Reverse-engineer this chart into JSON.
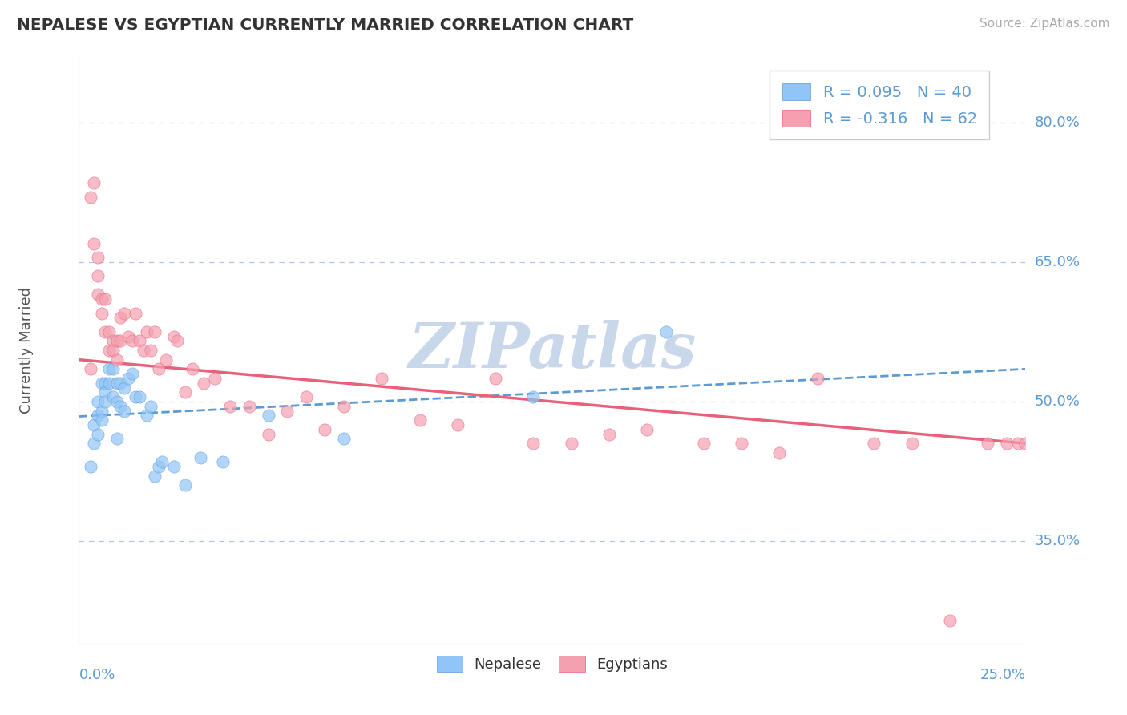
{
  "title": "NEPALESE VS EGYPTIAN CURRENTLY MARRIED CORRELATION CHART",
  "source_text": "Source: ZipAtlas.com",
  "ylabel": "Currently Married",
  "xlim": [
    0.0,
    0.25
  ],
  "ylim": [
    0.24,
    0.87
  ],
  "yticks": [
    0.35,
    0.5,
    0.65,
    0.8
  ],
  "ytick_labels": [
    "35.0%",
    "50.0%",
    "65.0%",
    "80.0%"
  ],
  "nepalese_R": 0.095,
  "nepalese_N": 40,
  "egyptian_R": -0.316,
  "egyptian_N": 62,
  "nepalese_color": "#92c5f7",
  "egyptian_color": "#f4a0b0",
  "nepalese_line_color": "#5b9bd5",
  "egyptian_line_color": "#e8607a",
  "legend_color": "#5b9bd5",
  "background_color": "#ffffff",
  "grid_color": "#aec6e0",
  "watermark_color": "#c8d8ea",
  "title_color": "#333333",
  "source_color": "#aaaaaa",
  "ylabel_color": "#555555",
  "axis_label_color": "#5b9bd5",
  "nepalese_x": [
    0.003,
    0.004,
    0.004,
    0.005,
    0.005,
    0.005,
    0.006,
    0.006,
    0.006,
    0.007,
    0.007,
    0.007,
    0.008,
    0.008,
    0.009,
    0.009,
    0.01,
    0.01,
    0.01,
    0.011,
    0.011,
    0.012,
    0.012,
    0.013,
    0.014,
    0.015,
    0.016,
    0.018,
    0.019,
    0.02,
    0.021,
    0.022,
    0.025,
    0.028,
    0.032,
    0.038,
    0.05,
    0.07,
    0.12,
    0.155
  ],
  "nepalese_y": [
    0.43,
    0.475,
    0.455,
    0.5,
    0.485,
    0.465,
    0.52,
    0.49,
    0.48,
    0.52,
    0.51,
    0.5,
    0.535,
    0.52,
    0.535,
    0.505,
    0.52,
    0.5,
    0.46,
    0.52,
    0.495,
    0.515,
    0.49,
    0.525,
    0.53,
    0.505,
    0.505,
    0.485,
    0.495,
    0.42,
    0.43,
    0.435,
    0.43,
    0.41,
    0.44,
    0.435,
    0.485,
    0.46,
    0.505,
    0.575
  ],
  "egyptian_x": [
    0.003,
    0.003,
    0.004,
    0.004,
    0.005,
    0.005,
    0.005,
    0.006,
    0.006,
    0.007,
    0.007,
    0.008,
    0.008,
    0.009,
    0.009,
    0.01,
    0.01,
    0.011,
    0.011,
    0.012,
    0.013,
    0.014,
    0.015,
    0.016,
    0.017,
    0.018,
    0.019,
    0.02,
    0.021,
    0.023,
    0.025,
    0.026,
    0.028,
    0.03,
    0.033,
    0.036,
    0.04,
    0.045,
    0.05,
    0.055,
    0.06,
    0.065,
    0.07,
    0.08,
    0.09,
    0.1,
    0.11,
    0.12,
    0.13,
    0.14,
    0.15,
    0.165,
    0.175,
    0.185,
    0.195,
    0.21,
    0.22,
    0.23,
    0.24,
    0.245,
    0.248,
    0.25
  ],
  "egyptian_y": [
    0.535,
    0.72,
    0.67,
    0.735,
    0.655,
    0.635,
    0.615,
    0.61,
    0.595,
    0.61,
    0.575,
    0.575,
    0.555,
    0.565,
    0.555,
    0.565,
    0.545,
    0.59,
    0.565,
    0.595,
    0.57,
    0.565,
    0.595,
    0.565,
    0.555,
    0.575,
    0.555,
    0.575,
    0.535,
    0.545,
    0.57,
    0.565,
    0.51,
    0.535,
    0.52,
    0.525,
    0.495,
    0.495,
    0.465,
    0.49,
    0.505,
    0.47,
    0.495,
    0.525,
    0.48,
    0.475,
    0.525,
    0.455,
    0.455,
    0.465,
    0.47,
    0.455,
    0.455,
    0.445,
    0.525,
    0.455,
    0.455,
    0.265,
    0.455,
    0.455,
    0.455,
    0.455
  ]
}
